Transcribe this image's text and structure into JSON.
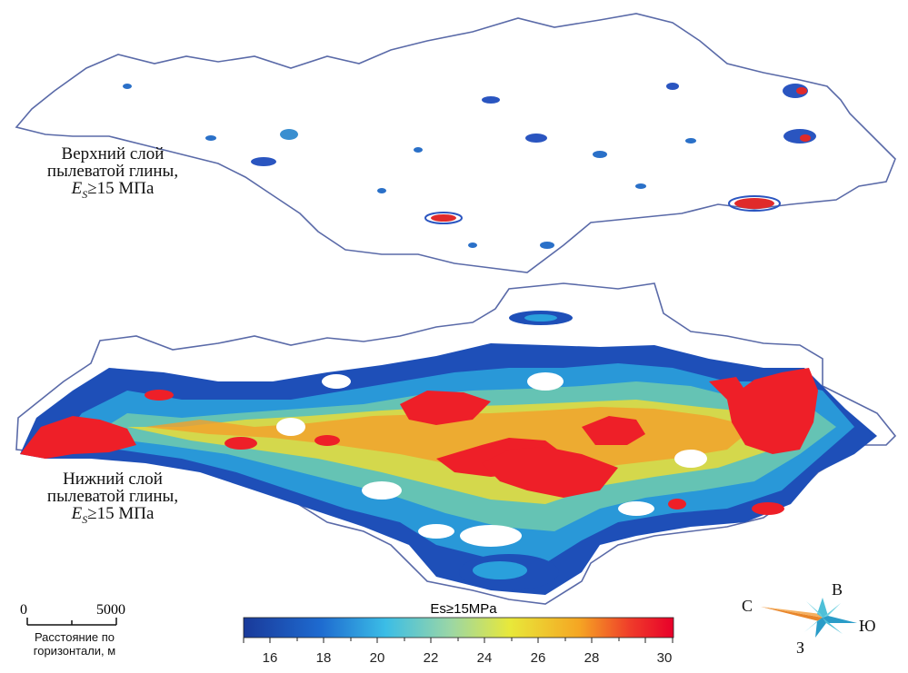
{
  "labels": {
    "upper": {
      "line1": "Верхний слой",
      "line2": "пылеватой глины,",
      "es_symbol": "E",
      "es_sub": "S",
      "threshold": "≥15 МПа"
    },
    "lower": {
      "line1": "Нижний слой",
      "line2": "пылеватой глины,",
      "es_symbol": "E",
      "es_sub": "S",
      "threshold": "≥15 МПа"
    }
  },
  "scale_bar": {
    "zero": "0",
    "max": "5000",
    "caption": "Расстояние по горизонтали, м"
  },
  "compass": {
    "north": "С",
    "east": "В",
    "south": "Ю",
    "west": "З"
  },
  "colorbar": {
    "title": "Es≥15MPa",
    "ticks": [
      "16",
      "18",
      "20",
      "22",
      "24",
      "26",
      "28",
      "30"
    ],
    "colors": [
      "#2b3da0",
      "#1e6bd0",
      "#32b6e0",
      "#8fd3a0",
      "#e8e83a",
      "#f5a623",
      "#e83a2a",
      "#e8002a"
    ]
  }
}
